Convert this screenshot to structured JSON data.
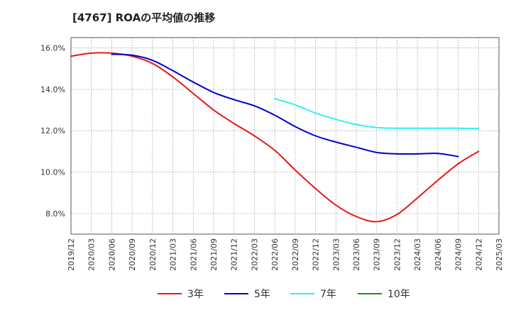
{
  "title": "[4767]  ROAの平均値の推移",
  "chart_data": {
    "type": "line",
    "title": "[4767]  ROAの平均値の推移",
    "xlabel": "",
    "ylabel": "",
    "y_ticks": [
      8.0,
      10.0,
      12.0,
      14.0,
      16.0
    ],
    "y_tick_labels": [
      "8.0%",
      "10.0%",
      "12.0%",
      "14.0%",
      "16.0%"
    ],
    "ylim": [
      7.0,
      16.5
    ],
    "x_tick_labels": [
      "2019/12",
      "2020/03",
      "2020/06",
      "2020/09",
      "2020/12",
      "2021/03",
      "2021/06",
      "2021/09",
      "2021/12",
      "2022/03",
      "2022/06",
      "2022/09",
      "2022/12",
      "2023/03",
      "2023/06",
      "2023/09",
      "2023/12",
      "2024/03",
      "2024/06",
      "2024/09",
      "2024/12",
      "2025/03"
    ],
    "grid": true,
    "legend_position": "bottom",
    "series": [
      {
        "name": "3年",
        "color": "#e41a1c",
        "start_index": 0,
        "values": [
          15.6,
          15.75,
          15.75,
          15.6,
          15.25,
          14.6,
          13.8,
          13.0,
          12.35,
          11.75,
          11.05,
          10.1,
          9.2,
          8.4,
          7.85,
          7.6,
          7.95,
          8.75,
          9.6,
          10.4,
          11.0
        ]
      },
      {
        "name": "5年",
        "color": "#0000cc",
        "start_index": 2,
        "values": [
          15.7,
          15.65,
          15.4,
          14.9,
          14.35,
          13.85,
          13.5,
          13.2,
          12.75,
          12.2,
          11.75,
          11.45,
          11.2,
          10.95,
          10.88,
          10.88,
          10.9,
          10.75
        ]
      },
      {
        "name": "7年",
        "color": "#33eeee",
        "start_index": 10,
        "values": [
          13.55,
          13.25,
          12.85,
          12.55,
          12.3,
          12.15,
          12.12,
          12.12,
          12.12,
          12.12,
          12.1
        ]
      },
      {
        "name": "10年",
        "color": "#228b22",
        "start_index": 0,
        "values": []
      }
    ]
  }
}
